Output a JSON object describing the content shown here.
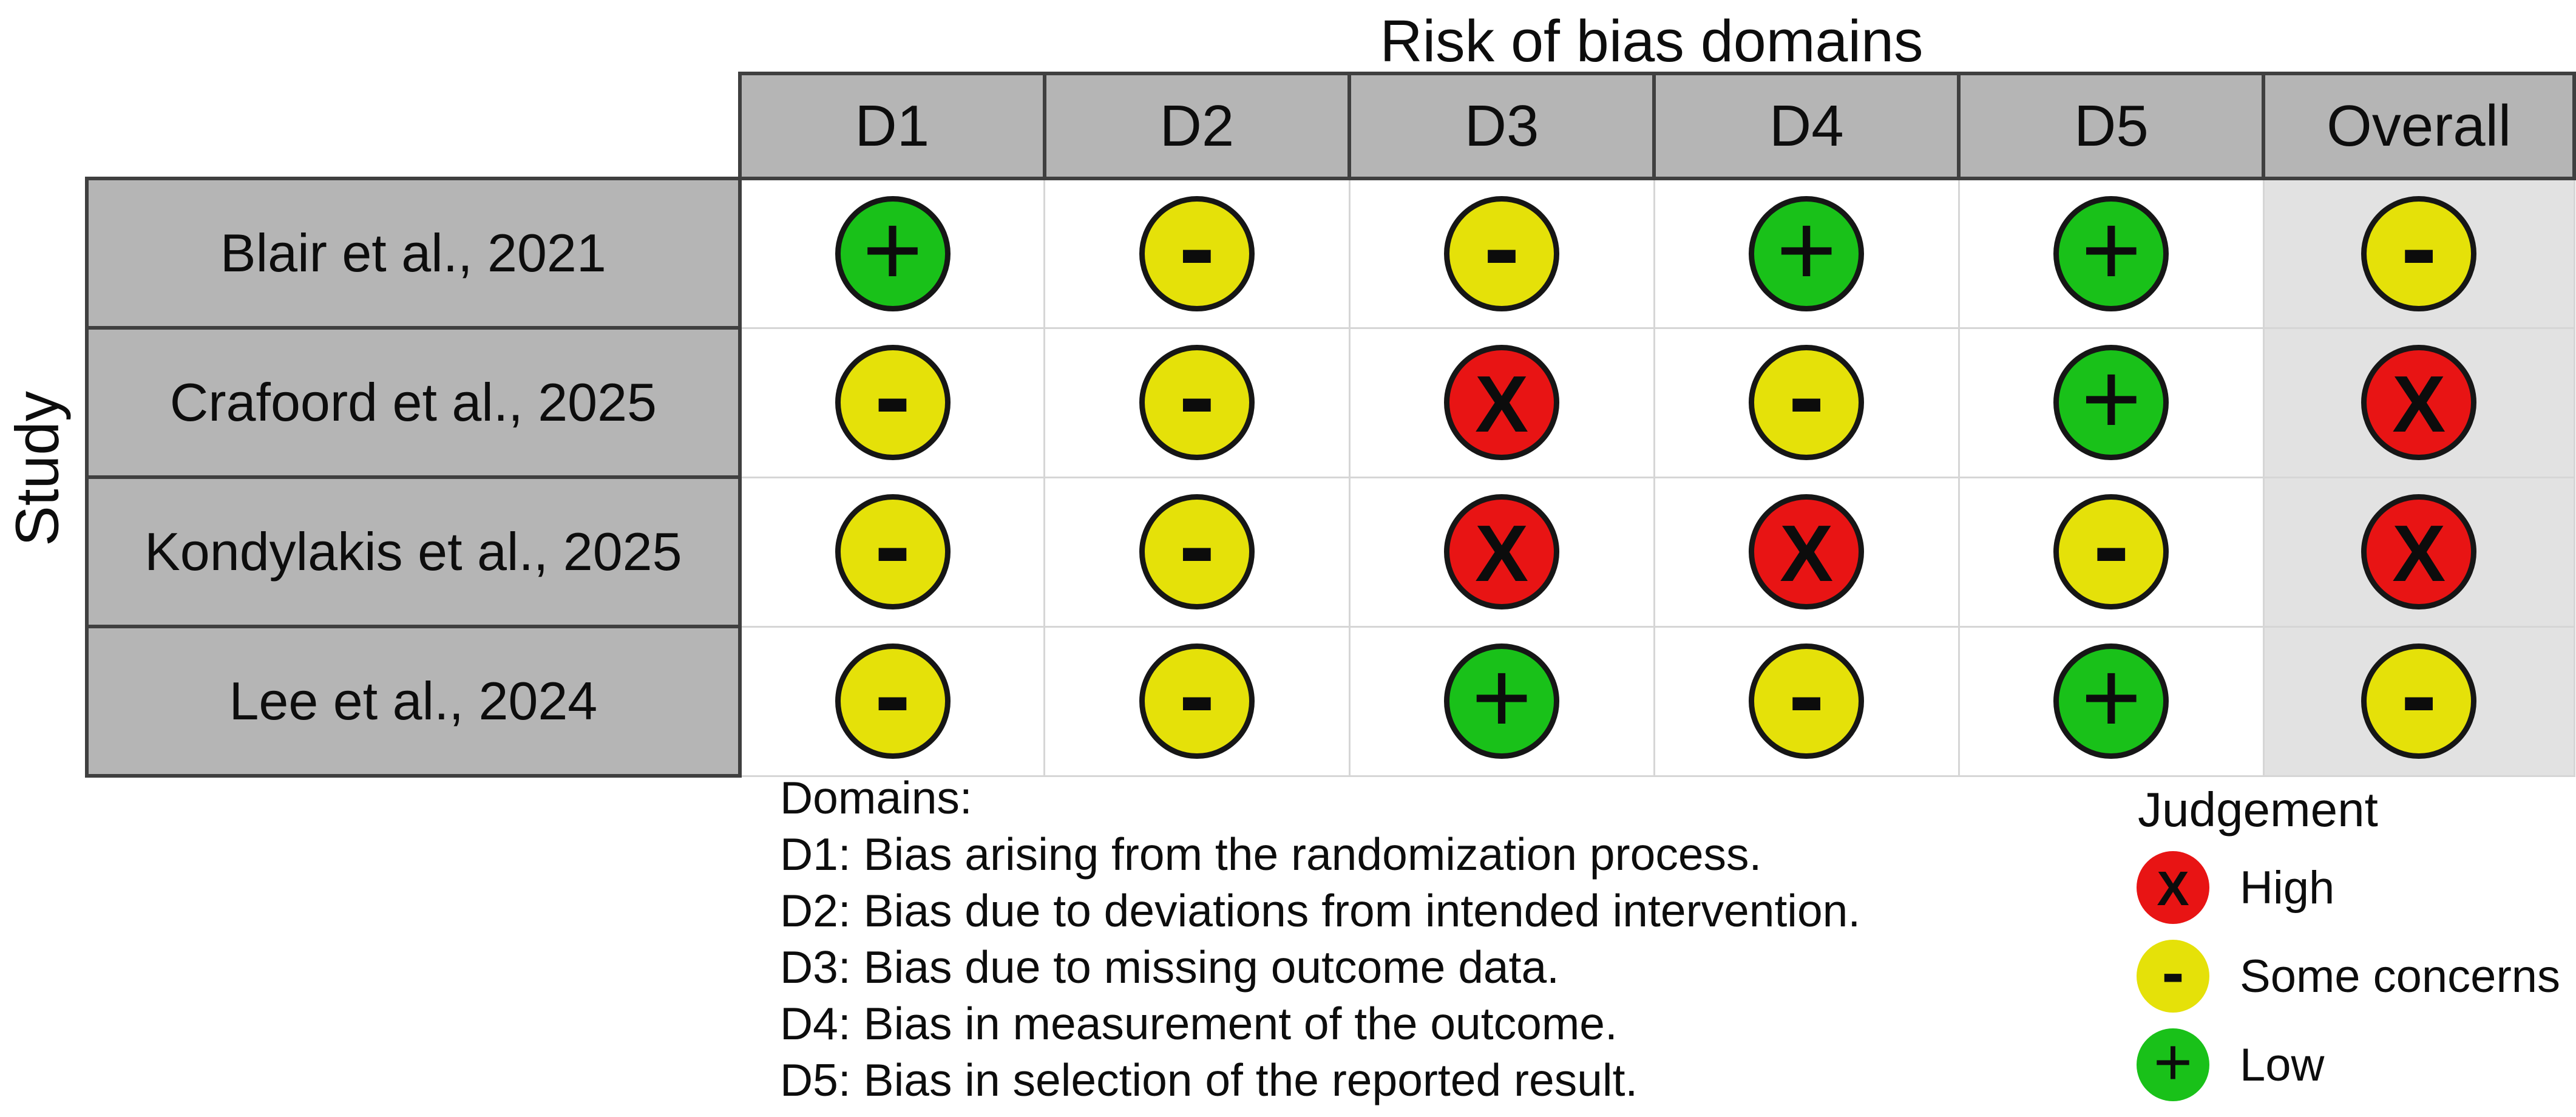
{
  "title": "Risk of bias domains",
  "y_axis_label": "Study",
  "table": {
    "domain_headers": [
      "D1",
      "D2",
      "D3",
      "D4",
      "D5",
      "Overall"
    ],
    "rows": [
      {
        "study": "Blair et al., 2021",
        "cells": [
          "low",
          "some",
          "some",
          "low",
          "low",
          "some"
        ]
      },
      {
        "study": "Crafoord et al., 2025",
        "cells": [
          "some",
          "some",
          "high",
          "some",
          "low",
          "high"
        ]
      },
      {
        "study": "Kondylakis et al., 2025",
        "cells": [
          "some",
          "some",
          "high",
          "high",
          "some",
          "high"
        ]
      },
      {
        "study": "Lee et al., 2024",
        "cells": [
          "some",
          "some",
          "low",
          "some",
          "low",
          "some"
        ]
      }
    ]
  },
  "judgement_styles": {
    "high": {
      "label": "High",
      "symbol": "X",
      "color": "#e81414"
    },
    "some": {
      "label": "Some concerns",
      "symbol": "-",
      "color": "#e5e109"
    },
    "low": {
      "label": "Low",
      "symbol": "+",
      "color": "#19c119"
    }
  },
  "footnote": {
    "heading": "Domains:",
    "lines": [
      "D1: Bias arising from the randomization process.",
      "D2: Bias due to deviations from intended intervention.",
      "D3: Bias due to missing outcome data.",
      "D4: Bias in measurement of the outcome.",
      "D5: Bias in selection of the reported result."
    ]
  },
  "legend": {
    "title": "Judgement",
    "items": [
      {
        "judgement": "high",
        "label": "High"
      },
      {
        "judgement": "some",
        "label": "Some concerns"
      },
      {
        "judgement": "low",
        "label": "Low"
      }
    ]
  },
  "colors": {
    "high": "#e81414",
    "some_concerns": "#e5e109",
    "low": "#19c119",
    "header_bg": "#b5b5b5",
    "overall_column_bg": "#e2e2e2",
    "grid_dark": "#3f3f3f",
    "grid_light": "#d6d6d6",
    "circle_outline": "#161616"
  },
  "chart_data": {
    "type": "table",
    "title": "Risk of bias domains",
    "x_categories": [
      "D1",
      "D2",
      "D3",
      "D4",
      "D5",
      "Overall"
    ],
    "y_categories": [
      "Blair et al., 2021",
      "Crafoord et al., 2025",
      "Kondylakis et al., 2025",
      "Lee et al., 2024"
    ],
    "values": [
      [
        "Low",
        "Some concerns",
        "Some concerns",
        "Low",
        "Low",
        "Some concerns"
      ],
      [
        "Some concerns",
        "Some concerns",
        "High",
        "Some concerns",
        "Low",
        "High"
      ],
      [
        "Some concerns",
        "Some concerns",
        "High",
        "High",
        "Some concerns",
        "High"
      ],
      [
        "Some concerns",
        "Some concerns",
        "Low",
        "Some concerns",
        "Low",
        "Some concerns"
      ]
    ],
    "legend_entries": [
      "High",
      "Some concerns",
      "Low"
    ],
    "legend_position": "bottom-right",
    "grid": true
  }
}
